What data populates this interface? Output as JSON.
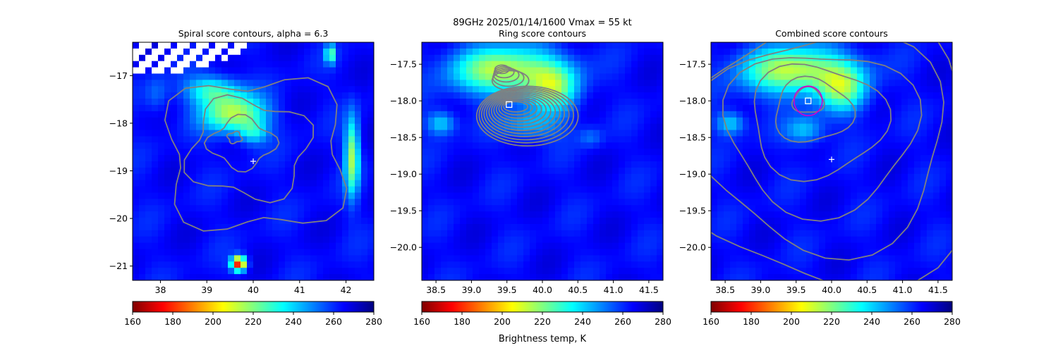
{
  "figure": {
    "suptitle_line1": "89GHz  2025/01/14/1600    Vmax = 55 kt",
    "colorbar_label": "Brightness temp, K"
  },
  "colormap": {
    "name": "jet_r",
    "stops": [
      "#800000",
      "#ff0000",
      "#ff8000",
      "#ffff00",
      "#80ff80",
      "#00ffff",
      "#0080ff",
      "#0000ff",
      "#000080"
    ]
  },
  "chart_data": [
    {
      "type": "heatmap",
      "title": "Spiral score contours, alpha =  6.3",
      "xlim": [
        37.4,
        42.6
      ],
      "ylim": [
        -21.3,
        -16.3
      ],
      "xticks": [
        38,
        39,
        40,
        41,
        42
      ],
      "yticks": [
        -17,
        -18,
        -19,
        -20,
        -21
      ],
      "colorbar": {
        "min": 160,
        "max": 280,
        "ticks": [
          160,
          180,
          200,
          220,
          240,
          260,
          280
        ]
      },
      "marker": {
        "shape": "plus",
        "x": 40.0,
        "y": -18.8,
        "color": "#ffffff"
      },
      "contour_color": "#808080"
    },
    {
      "type": "heatmap",
      "title": "Ring score contours",
      "xlim": [
        38.3,
        41.7
      ],
      "ylim": [
        -20.45,
        -17.2
      ],
      "xticks": [
        38.5,
        39.0,
        39.5,
        40.0,
        40.5,
        41.0,
        41.5
      ],
      "yticks": [
        -17.5,
        -18.0,
        -18.5,
        -19.0,
        -19.5,
        -20.0
      ],
      "colorbar": {
        "min": 160,
        "max": 280,
        "ticks": [
          160,
          180,
          200,
          220,
          240,
          260,
          280
        ]
      },
      "marker": {
        "shape": "square",
        "x": 39.53,
        "y": -18.05,
        "color": "#ffffff"
      },
      "contour_color": "#808080"
    },
    {
      "type": "heatmap",
      "title": "Combined score contours",
      "xlim": [
        38.3,
        41.7
      ],
      "ylim": [
        -20.45,
        -17.2
      ],
      "xticks": [
        38.5,
        39.0,
        39.5,
        40.0,
        40.5,
        41.0,
        41.5
      ],
      "yticks": [
        -17.5,
        -18.0,
        -18.5,
        -19.0,
        -19.5,
        -20.0
      ],
      "colorbar": {
        "min": 160,
        "max": 280,
        "ticks": [
          160,
          180,
          200,
          220,
          240,
          260,
          280
        ]
      },
      "marker": {
        "shape": "square",
        "x": 39.67,
        "y": -18.0,
        "color": "#ffffff"
      },
      "plus_marker": {
        "x": 40.0,
        "y": -18.8
      },
      "ring": {
        "x": 39.67,
        "y": -18.0,
        "color": "#d000d0"
      },
      "contour_color": "#808080"
    }
  ]
}
